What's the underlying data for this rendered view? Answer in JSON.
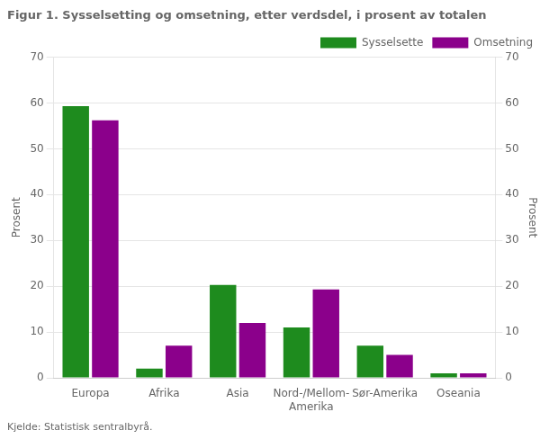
{
  "chart_data": {
    "type": "bar",
    "title": "Figur 1. Sysselsetting og omsetning, etter verdsdel, i prosent av totalen",
    "source": "Kjelde: Statistisk sentralbyrå.",
    "ylabel": "Prosent",
    "y2label": "Prosent",
    "categories": [
      "Europa",
      "Afrika",
      "Asia",
      "Nord-/Mellom-\nAmerika",
      "Sør-Amerika",
      "Oseania"
    ],
    "series": [
      {
        "name": "Sysselsette",
        "color": "#1e8b1e",
        "values": [
          59.3,
          2.0,
          20.3,
          11.0,
          7.0,
          1.0
        ]
      },
      {
        "name": "Omsetning",
        "color": "#8b008b",
        "values": [
          56.2,
          7.0,
          12.0,
          19.3,
          5.0,
          1.0
        ]
      }
    ],
    "ylim": [
      0,
      70
    ],
    "yticks": [
      0,
      10,
      20,
      30,
      40,
      50,
      60,
      70
    ],
    "y2lim": [
      0,
      70
    ],
    "y2ticks": [
      0,
      10,
      20,
      30,
      40,
      50,
      60,
      70
    ],
    "grid": true,
    "legend": "upper right"
  }
}
